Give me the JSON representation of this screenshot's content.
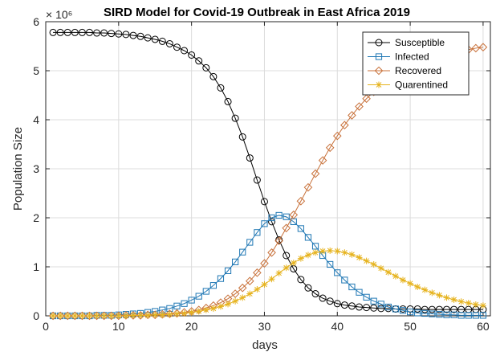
{
  "chart_data": {
    "type": "line",
    "title": "SIRD Model for Covid-19 Outbreak in East Africa 2019",
    "xlabel": "days",
    "ylabel": "Population Size",
    "y_exponent_label": "× 10⁶",
    "xlim": [
      0,
      61
    ],
    "ylim": [
      0,
      6
    ],
    "xticks": [
      0,
      10,
      20,
      30,
      40,
      50,
      60
    ],
    "yticks": [
      0,
      1,
      2,
      3,
      4,
      5,
      6
    ],
    "grid": true,
    "legend_position": "top-right",
    "x": [
      1,
      2,
      3,
      4,
      5,
      6,
      7,
      8,
      9,
      10,
      11,
      12,
      13,
      14,
      15,
      16,
      17,
      18,
      19,
      20,
      21,
      22,
      23,
      24,
      25,
      26,
      27,
      28,
      29,
      30,
      31,
      32,
      33,
      34,
      35,
      36,
      37,
      38,
      39,
      40,
      41,
      42,
      43,
      44,
      45,
      46,
      47,
      48,
      49,
      50,
      51,
      52,
      53,
      54,
      55,
      56,
      57,
      58,
      59,
      60
    ],
    "series": [
      {
        "name": "Susceptible",
        "color": "#000000",
        "marker": "circle",
        "values": [
          5.78,
          5.78,
          5.78,
          5.78,
          5.78,
          5.78,
          5.77,
          5.77,
          5.76,
          5.75,
          5.74,
          5.72,
          5.7,
          5.67,
          5.64,
          5.6,
          5.55,
          5.48,
          5.41,
          5.32,
          5.2,
          5.06,
          4.88,
          4.65,
          4.37,
          4.03,
          3.65,
          3.22,
          2.77,
          2.33,
          1.92,
          1.55,
          1.23,
          0.96,
          0.74,
          0.57,
          0.45,
          0.36,
          0.3,
          0.25,
          0.22,
          0.2,
          0.18,
          0.17,
          0.16,
          0.15,
          0.15,
          0.14,
          0.14,
          0.14,
          0.14,
          0.13,
          0.13,
          0.13,
          0.13,
          0.13,
          0.13,
          0.13,
          0.13,
          0.13
        ]
      },
      {
        "name": "Infected",
        "color": "#1f77b4",
        "marker": "square",
        "values": [
          0.0,
          0.0,
          0.0,
          0.0,
          0.0,
          0.0,
          0.01,
          0.01,
          0.01,
          0.02,
          0.03,
          0.04,
          0.05,
          0.07,
          0.09,
          0.12,
          0.15,
          0.2,
          0.25,
          0.32,
          0.4,
          0.5,
          0.62,
          0.76,
          0.92,
          1.1,
          1.3,
          1.5,
          1.7,
          1.88,
          2.0,
          2.05,
          2.02,
          1.92,
          1.78,
          1.6,
          1.42,
          1.23,
          1.05,
          0.88,
          0.73,
          0.59,
          0.48,
          0.38,
          0.3,
          0.24,
          0.18,
          0.14,
          0.11,
          0.08,
          0.06,
          0.05,
          0.04,
          0.03,
          0.02,
          0.02,
          0.01,
          0.01,
          0.01,
          0.01
        ]
      },
      {
        "name": "Recovered",
        "color": "#c8713a",
        "marker": "diamond",
        "values": [
          0.0,
          0.0,
          0.0,
          0.0,
          0.0,
          0.0,
          0.0,
          0.0,
          0.0,
          0.0,
          0.01,
          0.01,
          0.01,
          0.02,
          0.02,
          0.03,
          0.04,
          0.05,
          0.07,
          0.09,
          0.12,
          0.16,
          0.21,
          0.27,
          0.35,
          0.45,
          0.57,
          0.71,
          0.88,
          1.07,
          1.29,
          1.53,
          1.79,
          2.06,
          2.34,
          2.62,
          2.9,
          3.17,
          3.43,
          3.67,
          3.89,
          4.09,
          4.27,
          4.43,
          4.57,
          4.7,
          4.81,
          4.91,
          5.0,
          5.07,
          5.14,
          5.2,
          5.25,
          5.29,
          5.33,
          5.37,
          5.4,
          5.43,
          5.46,
          5.48
        ]
      },
      {
        "name": "Quarentined",
        "color": "#e6b31e",
        "marker": "star",
        "values": [
          0.0,
          0.0,
          0.0,
          0.0,
          0.0,
          0.0,
          0.0,
          0.0,
          0.0,
          0.0,
          0.0,
          0.01,
          0.01,
          0.01,
          0.02,
          0.02,
          0.03,
          0.04,
          0.05,
          0.07,
          0.09,
          0.12,
          0.15,
          0.19,
          0.24,
          0.3,
          0.37,
          0.45,
          0.54,
          0.64,
          0.75,
          0.87,
          0.98,
          1.08,
          1.17,
          1.24,
          1.29,
          1.32,
          1.33,
          1.32,
          1.29,
          1.25,
          1.19,
          1.12,
          1.05,
          0.97,
          0.89,
          0.81,
          0.73,
          0.66,
          0.59,
          0.53,
          0.47,
          0.42,
          0.37,
          0.33,
          0.29,
          0.26,
          0.23,
          0.21
        ]
      }
    ]
  }
}
